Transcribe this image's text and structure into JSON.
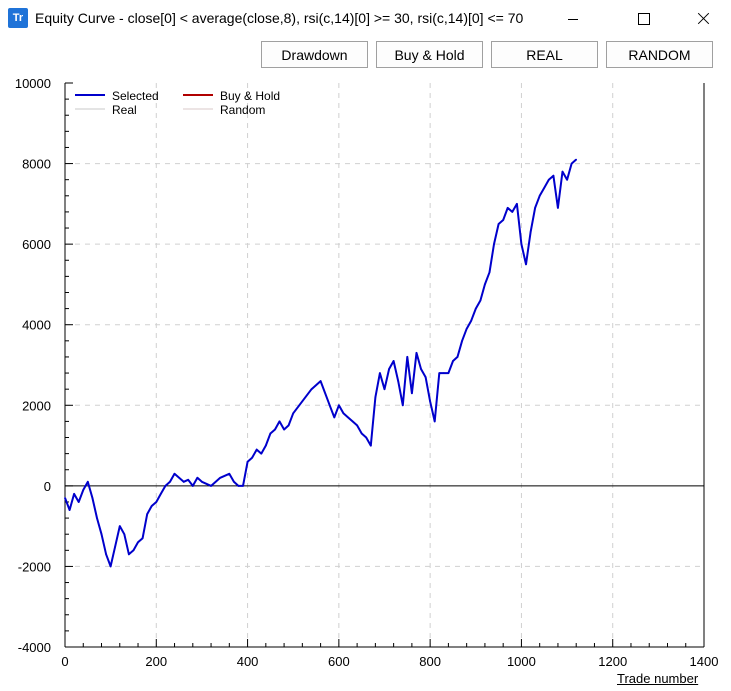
{
  "window": {
    "title": "Equity Curve - close[0] < average(close,8), rsi(c,14)[0] >= 30, rsi(c,14)[0] <= 70",
    "icon_text": "Tr"
  },
  "toolbar": {
    "drawdown_label": "Drawdown",
    "buyhold_label": "Buy & Hold",
    "real_label": "REAL",
    "random_label": "RANDOM"
  },
  "chart_data": {
    "type": "line",
    "xlabel": "Trade number",
    "ylabel": "",
    "xlim": [
      0,
      1400
    ],
    "ylim": [
      -4000,
      10000
    ],
    "x_ticks": [
      0,
      200,
      400,
      600,
      800,
      1000,
      1200,
      1400
    ],
    "y_ticks": [
      -4000,
      -2000,
      0,
      2000,
      4000,
      6000,
      8000,
      10000
    ],
    "grid": true,
    "legend_position": "top-left",
    "legend": [
      {
        "name": "Selected",
        "color": "#0000cc"
      },
      {
        "name": "Buy & Hold",
        "color": "#b00000"
      },
      {
        "name": "Real",
        "color": "#c8c8c8"
      },
      {
        "name": "Random",
        "color": "#d8c8c8"
      }
    ],
    "series": [
      {
        "name": "Selected",
        "color": "#0000cc",
        "x": [
          0,
          10,
          20,
          30,
          40,
          50,
          60,
          70,
          80,
          90,
          100,
          110,
          120,
          130,
          140,
          150,
          160,
          170,
          180,
          190,
          200,
          210,
          220,
          230,
          240,
          250,
          260,
          270,
          280,
          290,
          300,
          320,
          340,
          360,
          370,
          380,
          390,
          400,
          410,
          420,
          430,
          440,
          450,
          460,
          470,
          480,
          490,
          500,
          520,
          540,
          560,
          580,
          590,
          600,
          610,
          620,
          630,
          640,
          650,
          660,
          670,
          680,
          690,
          700,
          710,
          720,
          730,
          740,
          750,
          760,
          770,
          780,
          790,
          800,
          810,
          820,
          830,
          840,
          850,
          860,
          870,
          880,
          890,
          900,
          910,
          920,
          930,
          940,
          950,
          960,
          970,
          980,
          990,
          1000,
          1010,
          1020,
          1030,
          1040,
          1050,
          1060,
          1070,
          1080,
          1090,
          1100,
          1110,
          1120
        ],
        "values": [
          -300,
          -600,
          -200,
          -400,
          -100,
          100,
          -300,
          -800,
          -1200,
          -1700,
          -2000,
          -1500,
          -1000,
          -1200,
          -1700,
          -1600,
          -1400,
          -1300,
          -700,
          -500,
          -400,
          -200,
          0,
          100,
          300,
          200,
          100,
          150,
          0,
          200,
          100,
          0,
          200,
          300,
          100,
          0,
          0,
          600,
          700,
          900,
          800,
          1000,
          1300,
          1400,
          1600,
          1400,
          1500,
          1800,
          2100,
          2400,
          2600,
          2000,
          1700,
          2000,
          1800,
          1700,
          1600,
          1500,
          1300,
          1200,
          1000,
          2200,
          2800,
          2400,
          2900,
          3100,
          2600,
          2000,
          3200,
          2300,
          3300,
          2900,
          2700,
          2100,
          1600,
          2800,
          2800,
          2800,
          3100,
          3200,
          3600,
          3900,
          4100,
          4400,
          4600,
          5000,
          5300,
          6000,
          6500,
          6600,
          6900,
          6800,
          7000,
          6000,
          5500,
          6300,
          6900,
          7200,
          7400,
          7600,
          7700,
          6900,
          7800,
          7600,
          8000,
          8100
        ]
      }
    ]
  }
}
